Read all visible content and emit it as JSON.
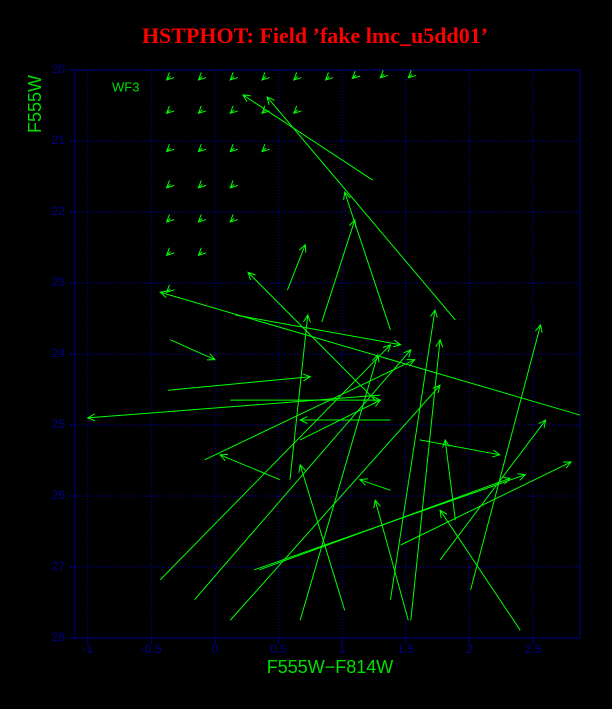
{
  "chart_data": {
    "type": "quiver",
    "title": "HSTPHOT: Field ’fake lmc_u5dd01’",
    "x_label": "F555W−F814W",
    "y_label": "F555W",
    "annotation": "WF3",
    "color": "#00ff00",
    "axis_color": "#00008b",
    "grid_color": "#0000cd",
    "title_color": "#ff0000",
    "label_color": "#00e000",
    "grid": true,
    "xlim": [
      -1.1,
      2.87
    ],
    "ylim": [
      28,
      20
    ],
    "xticks": [
      -1,
      -0.5,
      0,
      0.5,
      1,
      1.5,
      2,
      2.5
    ],
    "yticks": [
      20,
      21,
      22,
      23,
      24,
      25,
      26,
      27,
      28
    ],
    "x": [
      1.24,
      1.89,
      2.87,
      1.3,
      0.57,
      0.84,
      1.38,
      -0.43,
      -0.16,
      0.12,
      1.38,
      0.67,
      1.02,
      1.54,
      2.4,
      1.52,
      0.31,
      1.46,
      0.35,
      2.01,
      1.77,
      -0.37,
      0.12,
      -0.35,
      0.16,
      -0.08,
      0.59,
      0.67,
      1.38,
      0.51,
      1.61,
      1.38,
      1.26,
      1.89,
      -0.35,
      -0.1,
      0.15,
      0.4,
      0.65,
      0.9,
      1.11,
      1.33,
      1.55,
      -0.35,
      -0.1,
      0.15,
      0.4,
      0.65,
      -0.35,
      -0.1,
      0.15,
      0.4,
      -0.35,
      -0.1,
      0.15,
      -0.35,
      -0.1,
      0.15,
      -0.35,
      -0.1,
      -0.35
    ],
    "y": [
      21.55,
      23.52,
      24.86,
      24.58,
      23.1,
      23.55,
      23.66,
      27.18,
      27.46,
      27.75,
      27.46,
      27.75,
      27.61,
      27.75,
      27.89,
      27.75,
      27.04,
      26.69,
      27.04,
      27.32,
      26.9,
      24.51,
      24.65,
      23.8,
      23.45,
      25.49,
      25.77,
      25.21,
      25.92,
      25.77,
      25.21,
      24.93,
      24.65,
      26.34,
      20.09,
      20.09,
      20.09,
      20.09,
      20.09,
      20.09,
      20.07,
      20.06,
      20.06,
      20.56,
      20.56,
      20.56,
      20.56,
      20.56,
      21.1,
      21.1,
      21.1,
      21.1,
      21.61,
      21.61,
      21.61,
      22.09,
      22.09,
      22.09,
      22.56,
      22.56,
      23.08
    ],
    "x_end": [
      0.22,
      0.41,
      -0.43,
      -1.0,
      0.71,
      1.1,
      1.02,
      1.38,
      1.54,
      1.77,
      1.73,
      1.28,
      0.67,
      1.77,
      1.77,
      1.26,
      2.44,
      2.8,
      2.32,
      2.56,
      2.6,
      0.75,
      1.3,
      0.0,
      1.46,
      1.57,
      0.73,
      1.3,
      1.14,
      0.04,
      2.24,
      0.67,
      0.26,
      1.81,
      -0.38,
      -0.13,
      0.12,
      0.37,
      0.62,
      0.87,
      1.08,
      1.3,
      1.52,
      -0.38,
      -0.13,
      0.12,
      0.37,
      0.62,
      -0.38,
      -0.13,
      0.12,
      0.37,
      -0.38,
      -0.13,
      0.12,
      -0.38,
      -0.13,
      0.12,
      -0.38,
      -0.13,
      -0.38
    ],
    "y_end": [
      20.35,
      20.38,
      23.13,
      24.9,
      22.46,
      22.11,
      21.72,
      23.87,
      23.94,
      24.44,
      23.38,
      24.01,
      25.56,
      23.8,
      26.2,
      26.06,
      25.7,
      25.52,
      25.75,
      23.59,
      24.93,
      24.32,
      24.65,
      24.08,
      23.87,
      24.08,
      23.45,
      24.65,
      25.77,
      25.42,
      25.42,
      24.93,
      22.85,
      25.21,
      20.14,
      20.14,
      20.14,
      20.14,
      20.14,
      20.14,
      20.12,
      20.11,
      20.11,
      20.61,
      20.61,
      20.61,
      20.61,
      20.61,
      21.15,
      21.15,
      21.15,
      21.15,
      21.66,
      21.66,
      21.66,
      22.14,
      22.14,
      22.14,
      22.61,
      22.61,
      23.13
    ]
  }
}
